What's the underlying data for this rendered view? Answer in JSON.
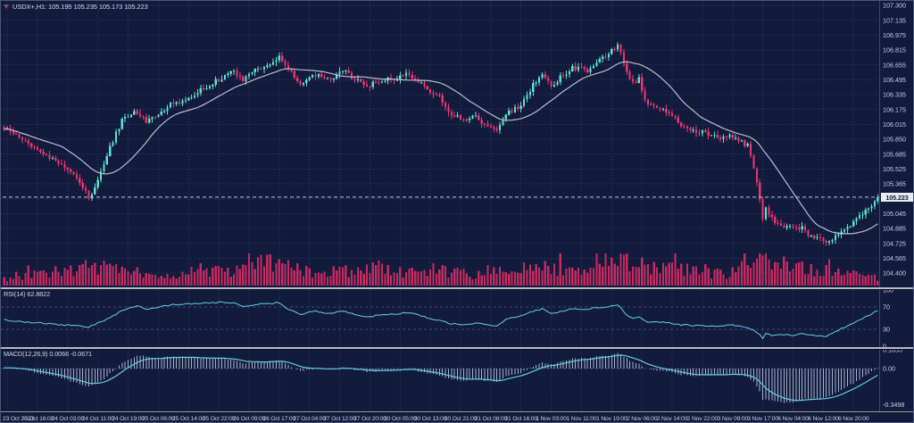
{
  "colors": {
    "background": "#131b3d",
    "grid": "#2d3a61",
    "bull": "#5fe3cf",
    "bear": "#ef346f",
    "ma_line": "#bcbdca",
    "volume": "#c72a5f",
    "indicator_line": "#62cfe0",
    "macd_histogram": "#a9b1c9",
    "last_price_line": "#c0c4d0",
    "axis_text": "#c9d0e0",
    "separator": "#b7bbc7",
    "price_tag_bg": "#e8ecf4",
    "price_tag_text": "#101838"
  },
  "chart_data": [
    {
      "type": "candlestick",
      "symbol": "USDX+",
      "timeframe": "H1",
      "ohlc_label": "USDX+,H1: 105.195 105.235 105.173 105.223",
      "open": 105.195,
      "high": 105.235,
      "low": 105.173,
      "close": 105.223,
      "last_price": 105.223,
      "last_price_text": "105.223",
      "y_range": [
        104.4,
        107.3
      ],
      "price_ticks": [
        "107.300",
        "107.135",
        "106.975",
        "106.815",
        "106.655",
        "106.495",
        "106.335",
        "106.175",
        "106.015",
        "105.850",
        "105.685",
        "105.525",
        "105.365",
        "105.205",
        "105.045",
        "104.885",
        "104.725",
        "104.565",
        "104.400"
      ],
      "time_labels": [
        "23 Oct 2023",
        "23 Oct 16:00",
        "24 Oct 03:00",
        "24 Oct 11:00",
        "24 Oct 19:00",
        "25 Oct 06:00",
        "25 Oct 14:00",
        "25 Oct 22:00",
        "26 Oct 09:00",
        "26 Oct 17:00",
        "27 Oct 04:00",
        "27 Oct 12:00",
        "27 Oct 20:00",
        "30 Oct 05:00",
        "30 Oct 13:00",
        "30 Oct 21:00",
        "31 Oct 08:00",
        "31 Oct 16:00",
        "1 Nov 03:00",
        "1 Nov 11:00",
        "1 Nov 19:00",
        "2 Nov 06:00",
        "2 Nov 14:00",
        "2 Nov 22:00",
        "3 Nov 09:00",
        "3 Nov 17:00",
        "6 Nov 04:00",
        "6 Nov 12:00",
        "6 Nov 20:00"
      ],
      "candle_count": 290,
      "label_every": 10,
      "ma_period": 20,
      "close_anchors": [
        [
          0,
          105.97
        ],
        [
          4,
          105.9
        ],
        [
          8,
          105.81
        ],
        [
          13,
          105.7
        ],
        [
          17,
          105.6
        ],
        [
          22,
          105.5
        ],
        [
          25,
          105.38
        ],
        [
          28,
          105.22
        ],
        [
          30,
          105.34
        ],
        [
          33,
          105.58
        ],
        [
          36,
          105.84
        ],
        [
          39,
          106.06
        ],
        [
          44,
          106.15
        ],
        [
          47,
          106.04
        ],
        [
          51,
          106.12
        ],
        [
          55,
          106.22
        ],
        [
          60,
          106.28
        ],
        [
          66,
          106.4
        ],
        [
          72,
          106.52
        ],
        [
          76,
          106.58
        ],
        [
          79,
          106.5
        ],
        [
          83,
          106.6
        ],
        [
          88,
          106.67
        ],
        [
          91,
          106.74
        ],
        [
          94,
          106.6
        ],
        [
          98,
          106.46
        ],
        [
          103,
          106.55
        ],
        [
          107,
          106.49
        ],
        [
          112,
          106.59
        ],
        [
          116,
          106.51
        ],
        [
          120,
          106.43
        ],
        [
          125,
          106.48
        ],
        [
          129,
          106.51
        ],
        [
          134,
          106.56
        ],
        [
          139,
          106.42
        ],
        [
          144,
          106.3
        ],
        [
          148,
          106.12
        ],
        [
          153,
          106.05
        ],
        [
          156,
          106.1
        ],
        [
          160,
          105.98
        ],
        [
          163,
          105.93
        ],
        [
          166,
          106.12
        ],
        [
          171,
          106.22
        ],
        [
          175,
          106.44
        ],
        [
          178,
          106.54
        ],
        [
          181,
          106.43
        ],
        [
          185,
          106.55
        ],
        [
          188,
          106.62
        ],
        [
          193,
          106.6
        ],
        [
          196,
          106.7
        ],
        [
          200,
          106.78
        ],
        [
          203,
          106.87
        ],
        [
          206,
          106.58
        ],
        [
          208,
          106.46
        ],
        [
          210,
          106.5
        ],
        [
          212,
          106.26
        ],
        [
          216,
          106.2
        ],
        [
          220,
          106.14
        ],
        [
          224,
          106.0
        ],
        [
          228,
          105.95
        ],
        [
          232,
          105.92
        ],
        [
          237,
          105.88
        ],
        [
          240,
          105.9
        ],
        [
          243,
          105.85
        ],
        [
          246,
          105.78
        ],
        [
          248,
          105.55
        ],
        [
          250,
          105.22
        ],
        [
          251,
          105.0
        ],
        [
          252,
          105.1
        ],
        [
          255,
          104.96
        ],
        [
          258,
          104.92
        ],
        [
          261,
          104.88
        ],
        [
          264,
          104.9
        ],
        [
          266,
          104.82
        ],
        [
          269,
          104.78
        ],
        [
          272,
          104.74
        ],
        [
          275,
          104.8
        ],
        [
          278,
          104.88
        ],
        [
          281,
          104.96
        ],
        [
          284,
          105.05
        ],
        [
          287,
          105.14
        ],
        [
          289,
          105.223
        ]
      ],
      "volume_anchors": [
        [
          0,
          0.18
        ],
        [
          8,
          0.3
        ],
        [
          17,
          0.45
        ],
        [
          25,
          0.55
        ],
        [
          28,
          0.65
        ],
        [
          33,
          0.55
        ],
        [
          39,
          0.6
        ],
        [
          44,
          0.45
        ],
        [
          55,
          0.35
        ],
        [
          66,
          0.45
        ],
        [
          76,
          0.4
        ],
        [
          88,
          0.8
        ],
        [
          91,
          0.65
        ],
        [
          98,
          0.45
        ],
        [
          107,
          0.4
        ],
        [
          116,
          0.45
        ],
        [
          125,
          0.55
        ],
        [
          129,
          0.45
        ],
        [
          139,
          0.35
        ],
        [
          148,
          0.45
        ],
        [
          156,
          0.3
        ],
        [
          163,
          0.55
        ],
        [
          171,
          0.5
        ],
        [
          178,
          0.55
        ],
        [
          188,
          0.5
        ],
        [
          196,
          0.65
        ],
        [
          203,
          0.9
        ],
        [
          208,
          0.7
        ],
        [
          216,
          0.55
        ],
        [
          224,
          0.5
        ],
        [
          232,
          0.4
        ],
        [
          240,
          0.35
        ],
        [
          248,
          0.75
        ],
        [
          251,
          1.0
        ],
        [
          255,
          0.75
        ],
        [
          261,
          0.55
        ],
        [
          266,
          0.5
        ],
        [
          272,
          0.45
        ],
        [
          278,
          0.4
        ],
        [
          284,
          0.3
        ],
        [
          289,
          0.25
        ]
      ]
    },
    {
      "type": "line",
      "name": "RSI",
      "label": "RSI(14) 62.8822",
      "period": 14,
      "value": 62.8822,
      "ticks": [
        "100",
        "70",
        "30",
        "0"
      ],
      "tick_values": [
        100,
        70,
        30,
        0
      ],
      "level_lines": [
        70,
        30
      ],
      "anchors": [
        [
          0,
          47
        ],
        [
          8,
          43
        ],
        [
          17,
          39
        ],
        [
          25,
          36
        ],
        [
          28,
          34
        ],
        [
          33,
          46
        ],
        [
          39,
          63
        ],
        [
          44,
          72
        ],
        [
          47,
          66
        ],
        [
          51,
          70
        ],
        [
          55,
          74
        ],
        [
          60,
          75
        ],
        [
          66,
          77
        ],
        [
          72,
          78
        ],
        [
          76,
          77
        ],
        [
          79,
          71
        ],
        [
          83,
          74
        ],
        [
          88,
          76
        ],
        [
          91,
          78
        ],
        [
          94,
          66
        ],
        [
          98,
          57
        ],
        [
          103,
          63
        ],
        [
          107,
          58
        ],
        [
          112,
          63
        ],
        [
          116,
          57
        ],
        [
          120,
          52
        ],
        [
          125,
          56
        ],
        [
          129,
          57
        ],
        [
          134,
          60
        ],
        [
          139,
          52
        ],
        [
          144,
          46
        ],
        [
          148,
          40
        ],
        [
          153,
          38
        ],
        [
          156,
          42
        ],
        [
          160,
          37
        ],
        [
          163,
          35
        ],
        [
          166,
          48
        ],
        [
          171,
          54
        ],
        [
          175,
          62
        ],
        [
          178,
          66
        ],
        [
          181,
          58
        ],
        [
          185,
          63
        ],
        [
          188,
          67
        ],
        [
          193,
          65
        ],
        [
          196,
          69
        ],
        [
          200,
          71
        ],
        [
          203,
          74
        ],
        [
          206,
          56
        ],
        [
          208,
          50
        ],
        [
          210,
          53
        ],
        [
          212,
          44
        ],
        [
          216,
          43
        ],
        [
          220,
          42
        ],
        [
          224,
          38
        ],
        [
          228,
          37
        ],
        [
          232,
          37
        ],
        [
          237,
          36
        ],
        [
          240,
          38
        ],
        [
          243,
          36
        ],
        [
          246,
          33
        ],
        [
          248,
          28
        ],
        [
          250,
          20
        ],
        [
          251,
          15
        ],
        [
          252,
          22
        ],
        [
          255,
          19
        ],
        [
          258,
          21
        ],
        [
          261,
          19
        ],
        [
          264,
          23
        ],
        [
          266,
          20
        ],
        [
          269,
          19
        ],
        [
          272,
          18
        ],
        [
          275,
          26
        ],
        [
          278,
          34
        ],
        [
          281,
          40
        ],
        [
          284,
          50
        ],
        [
          287,
          58
        ],
        [
          289,
          62.88
        ]
      ]
    },
    {
      "type": "macd",
      "name": "MACD",
      "label": "MACD(12,26,9) 0.0066 -0.0671",
      "params": "12,26,9",
      "main_value": 0.0066,
      "signal_value": -0.0671,
      "ticks": [
        "0.1855",
        "0.00",
        "-0.3498"
      ],
      "tick_values": [
        0.1855,
        0,
        -0.3498
      ],
      "signal_period": 9,
      "main_anchors": [
        [
          0,
          0.01
        ],
        [
          8,
          -0.02
        ],
        [
          17,
          -0.08
        ],
        [
          25,
          -0.15
        ],
        [
          28,
          -0.17
        ],
        [
          33,
          -0.1
        ],
        [
          39,
          0.05
        ],
        [
          44,
          0.13
        ],
        [
          47,
          0.12
        ],
        [
          51,
          0.1
        ],
        [
          55,
          0.12
        ],
        [
          60,
          0.11
        ],
        [
          66,
          0.1
        ],
        [
          72,
          0.1
        ],
        [
          76,
          0.08
        ],
        [
          79,
          0.05
        ],
        [
          83,
          0.06
        ],
        [
          88,
          0.07
        ],
        [
          91,
          0.08
        ],
        [
          94,
          0.03
        ],
        [
          98,
          -0.02
        ],
        [
          103,
          0.0
        ],
        [
          107,
          -0.01
        ],
        [
          112,
          0.01
        ],
        [
          116,
          -0.01
        ],
        [
          120,
          -0.03
        ],
        [
          125,
          -0.02
        ],
        [
          129,
          -0.01
        ],
        [
          134,
          0.0
        ],
        [
          139,
          -0.04
        ],
        [
          144,
          -0.07
        ],
        [
          148,
          -0.1
        ],
        [
          153,
          -0.12
        ],
        [
          156,
          -0.1
        ],
        [
          160,
          -0.12
        ],
        [
          163,
          -0.13
        ],
        [
          166,
          -0.08
        ],
        [
          171,
          -0.04
        ],
        [
          175,
          0.02
        ],
        [
          178,
          0.06
        ],
        [
          181,
          0.04
        ],
        [
          185,
          0.07
        ],
        [
          188,
          0.1
        ],
        [
          193,
          0.1
        ],
        [
          196,
          0.12
        ],
        [
          200,
          0.13
        ],
        [
          203,
          0.15
        ],
        [
          206,
          0.1
        ],
        [
          208,
          0.06
        ],
        [
          210,
          0.05
        ],
        [
          212,
          0.0
        ],
        [
          216,
          -0.02
        ],
        [
          220,
          -0.03
        ],
        [
          224,
          -0.06
        ],
        [
          228,
          -0.07
        ],
        [
          232,
          -0.06
        ],
        [
          237,
          -0.06
        ],
        [
          240,
          -0.05
        ],
        [
          243,
          -0.06
        ],
        [
          246,
          -0.08
        ],
        [
          248,
          -0.13
        ],
        [
          250,
          -0.22
        ],
        [
          251,
          -0.3
        ],
        [
          255,
          -0.32
        ],
        [
          258,
          -0.33
        ],
        [
          261,
          -0.33
        ],
        [
          264,
          -0.3
        ],
        [
          269,
          -0.29
        ],
        [
          272,
          -0.28
        ],
        [
          275,
          -0.24
        ],
        [
          278,
          -0.19
        ],
        [
          281,
          -0.14
        ],
        [
          284,
          -0.09
        ],
        [
          287,
          -0.03
        ],
        [
          289,
          0.0066
        ]
      ]
    }
  ]
}
